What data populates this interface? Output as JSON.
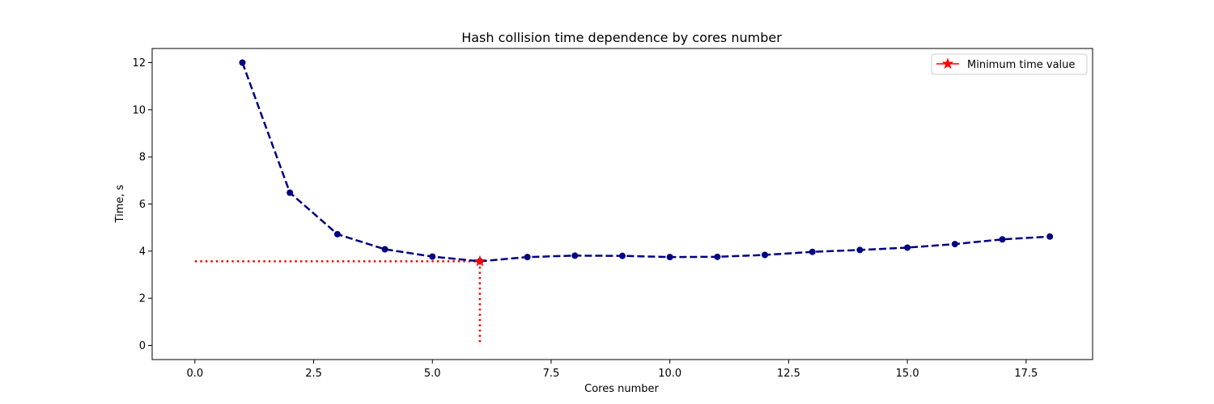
{
  "chart_data": {
    "type": "line",
    "title": "Hash collision time dependence by cores number",
    "xlabel": "Cores number",
    "ylabel": "Time, s",
    "xlim": [
      -0.9,
      18.9
    ],
    "ylim": [
      -0.6,
      12.6
    ],
    "xticks": [
      0.0,
      2.5,
      5.0,
      7.5,
      10.0,
      12.5,
      15.0,
      17.5
    ],
    "xtick_labels": [
      "0.0",
      "2.5",
      "5.0",
      "7.5",
      "10.0",
      "12.5",
      "15.0",
      "17.5"
    ],
    "yticks": [
      0,
      2,
      4,
      6,
      8,
      10,
      12
    ],
    "ytick_labels": [
      "0",
      "2",
      "4",
      "6",
      "8",
      "10",
      "12"
    ],
    "grid": false,
    "legend_position": "top-right",
    "series": [
      {
        "x": [
          1,
          2,
          3,
          4,
          5,
          6,
          7,
          8,
          9,
          10,
          11,
          12,
          13,
          14,
          15,
          16,
          17,
          18
        ],
        "values": [
          12.0,
          6.48,
          4.72,
          4.08,
          3.77,
          3.57,
          3.75,
          3.81,
          3.8,
          3.75,
          3.76,
          3.84,
          3.97,
          4.05,
          4.15,
          4.3,
          4.5,
          4.62
        ],
        "color": "#000080",
        "style": "dashed",
        "marker": "circle"
      }
    ],
    "minimum": {
      "name": "Minimum time value",
      "x": 6,
      "y": 3.57,
      "color": "#ff0000",
      "marker": "star",
      "guide_style": "dotted"
    }
  }
}
